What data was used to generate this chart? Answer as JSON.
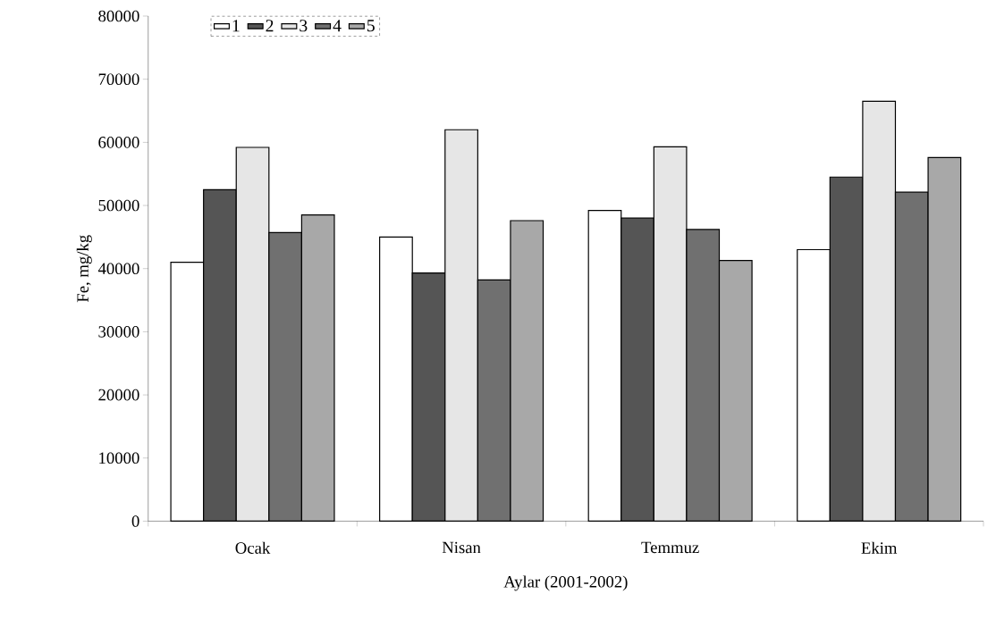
{
  "chart_data": {
    "type": "bar",
    "xlabel": "Aylar (2001-2002)",
    "ylabel": "Fe, mg/kg",
    "categories": [
      "Ocak",
      "Nisan",
      "Temmuz",
      "Ekim"
    ],
    "series": [
      {
        "name": "1",
        "color": "#ffffff",
        "values": [
          41000,
          45000,
          49200,
          43000
        ]
      },
      {
        "name": "2",
        "color": "#555555",
        "values": [
          52500,
          39300,
          48000,
          54500
        ]
      },
      {
        "name": "3",
        "color": "#e6e6e6",
        "values": [
          59200,
          62000,
          59300,
          66500
        ]
      },
      {
        "name": "4",
        "color": "#707070",
        "values": [
          45700,
          38200,
          46200,
          52100
        ]
      },
      {
        "name": "5",
        "color": "#a8a8a8",
        "values": [
          48500,
          47600,
          41300,
          57600
        ]
      }
    ],
    "ylim": [
      0,
      80000
    ],
    "yticks": [
      0,
      10000,
      20000,
      30000,
      40000,
      50000,
      60000,
      70000,
      80000
    ],
    "grid": false,
    "legend": "top left"
  }
}
